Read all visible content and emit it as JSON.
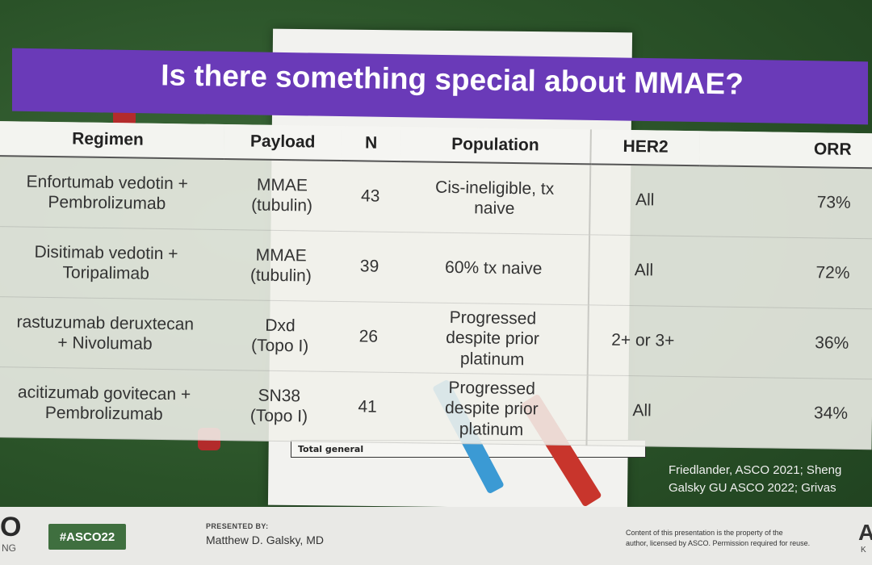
{
  "slide": {
    "title": "Is there something special about MMAE?",
    "table": {
      "headers": [
        "Regimen",
        "Payload",
        "N",
        "Population",
        "HER2",
        "ORR"
      ],
      "rows": [
        {
          "regimen_line1": "Enfortumab vedotin +",
          "regimen_line2": "Pembrolizumab",
          "payload_line1": "MMAE",
          "payload_line2": "(tubulin)",
          "n": "43",
          "population_line1": "Cis-ineligible, tx",
          "population_line2": "naive",
          "population_line3": "",
          "her2": "All",
          "orr": "73%"
        },
        {
          "regimen_line1": "Disitimab vedotin +",
          "regimen_line2": "Toripalimab",
          "payload_line1": "MMAE",
          "payload_line2": "(tubulin)",
          "n": "39",
          "population_line1": "60% tx naive",
          "population_line2": "",
          "population_line3": "",
          "her2": "All",
          "orr": "72%"
        },
        {
          "regimen_line1": "rastuzumab deruxtecan",
          "regimen_line2": "+ Nivolumab",
          "payload_line1": "Dxd",
          "payload_line2": "(Topo I)",
          "n": "26",
          "population_line1": "Progressed",
          "population_line2": "despite prior",
          "population_line3": "platinum",
          "her2": "2+ or 3+",
          "orr": "36%"
        },
        {
          "regimen_line1": "acitizumab govitecan +",
          "regimen_line2": "Pembrolizumab",
          "payload_line1": "SN38",
          "payload_line2": "(Topo I)",
          "n": "41",
          "population_line1": "Progressed",
          "population_line2": "despite prior",
          "population_line3": "platinum",
          "her2": "All",
          "orr": "34%"
        }
      ]
    },
    "background_paper_label": "Total general",
    "citation_line1": "Friedlander, ASCO 2021; Sheng",
    "citation_line2": "Galsky GU ASCO 2022; Grivas"
  },
  "footer": {
    "logo_fragment": "O",
    "logo_sub": "NG",
    "hashtag": "#ASCO22",
    "presented_by_label": "PRESENTED BY:",
    "presenter": "Matthew D. Galsky, MD",
    "copyright_line1": "Content of this presentation is the property of the",
    "copyright_line2": "author, licensed by ASCO. Permission required for reuse.",
    "right_logo": "A",
    "right_logo_sub": "K"
  },
  "colors": {
    "banner": "#6a3ab8",
    "background_felt": "#2c5a2c",
    "hashtag_badge": "#3f6f3f"
  }
}
